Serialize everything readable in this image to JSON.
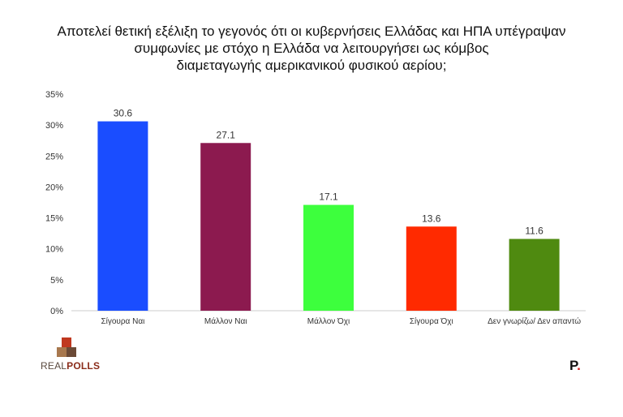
{
  "title_lines": [
    "Αποτελεί θετική εξέλιξη το γεγονός ότι οι κυβερνήσεις Ελλάδας και ΗΠΑ υπέγραψαν",
    "συμφωνίες με στόχο η Ελλάδα να λειτουργήσει ως κόμβος",
    "διαμεταγωγής αμερικανικού φυσικού αερίου;"
  ],
  "chart_data": {
    "type": "bar",
    "categories": [
      "Σίγουρα Ναι",
      "Μάλλον Ναι",
      "Μάλλον Όχι",
      "Σίγουρα Όχι",
      "Δεν γνωρίζω/ Δεν απαντώ"
    ],
    "values": [
      30.6,
      27.1,
      17.1,
      13.6,
      11.6
    ],
    "data_labels": [
      "30.6",
      "27.1",
      "17.1",
      "13.6",
      "11.6"
    ],
    "colors": [
      "#1a4dff",
      "#8c1a4f",
      "#3dff3d",
      "#ff2a00",
      "#4f8a10"
    ],
    "ylim": [
      0,
      35
    ],
    "yticks": [
      0,
      5,
      10,
      15,
      20,
      25,
      30,
      35
    ],
    "ytick_labels": [
      "0%",
      "5%",
      "10%",
      "15%",
      "20%",
      "25%",
      "30%",
      "35%"
    ],
    "grid": false,
    "legend": "none"
  },
  "logos": {
    "left_word_a": "REAL",
    "left_word_b": "POLLS",
    "right_text": "P",
    "right_dot": "."
  }
}
